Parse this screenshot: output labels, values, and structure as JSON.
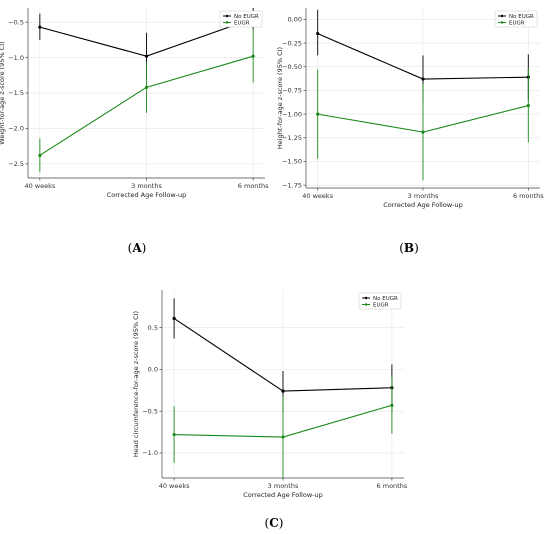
{
  "chart_data": [
    {
      "type": "line",
      "panel": "(A)",
      "panel_letter": "A",
      "categories": [
        "40 weeks",
        "3 months",
        "6 months"
      ],
      "xlabel": "Corrected Age Follow-up",
      "ylabel": "Weight-for-age z-score (95% CI)",
      "ylim": [
        -2.7,
        -0.3
      ],
      "yticks": [
        -2.5,
        -2.0,
        -1.5,
        -1.0,
        -0.5
      ],
      "ytick_labels": [
        "−2.5",
        "−2.0",
        "−1.5",
        "−1.0",
        "−0.5"
      ],
      "grid": true,
      "legend": "top-right",
      "series": [
        {
          "name": "No EUGR",
          "color": "#000000",
          "values": [
            -0.57,
            -0.98,
            -0.45
          ],
          "ci_low": [
            -0.75,
            -1.3,
            -0.6
          ],
          "ci_high": [
            -0.38,
            -0.65,
            -0.3
          ]
        },
        {
          "name": "EUGR",
          "color": "#1a8a1a",
          "values": [
            -2.38,
            -1.42,
            -0.98
          ],
          "ci_low": [
            -2.62,
            -1.78,
            -1.35
          ],
          "ci_high": [
            -2.14,
            -1.06,
            -0.6
          ]
        }
      ]
    },
    {
      "type": "line",
      "panel": "(B)",
      "panel_letter": "B",
      "categories": [
        "40 weeks",
        "3 months",
        "6 months"
      ],
      "xlabel": "Corrected Age Follow-up",
      "ylabel": "Height-for-age z-score (95% CI)",
      "ylim": [
        -1.78,
        0.12
      ],
      "yticks": [
        -1.75,
        -1.5,
        -1.25,
        -1.0,
        -0.75,
        -0.5,
        -0.25,
        0.0
      ],
      "ytick_labels": [
        "−1.75",
        "−1.50",
        "−1.25",
        "−1.00",
        "−0.75",
        "−0.50",
        "−0.25",
        "0.00"
      ],
      "grid": true,
      "legend": "top-right",
      "series": [
        {
          "name": "No EUGR",
          "color": "#000000",
          "values": [
            -0.15,
            -0.63,
            -0.61
          ],
          "ci_low": [
            -0.38,
            -0.88,
            -0.85
          ],
          "ci_high": [
            0.1,
            -0.38,
            -0.37
          ]
        },
        {
          "name": "EUGR",
          "color": "#1a8a1a",
          "values": [
            -1.0,
            -1.19,
            -0.91
          ],
          "ci_low": [
            -1.47,
            -1.7,
            -1.3
          ],
          "ci_high": [
            -0.53,
            -0.68,
            -0.52
          ]
        }
      ]
    },
    {
      "type": "line",
      "panel": "(C)",
      "panel_letter": "C",
      "categories": [
        "40 weeks",
        "3 months",
        "6 months"
      ],
      "xlabel": "Corrected Age Follow-up",
      "ylabel": "Head circumference-for-age z-score (95% CI)",
      "ylim": [
        -1.3,
        0.95
      ],
      "yticks": [
        -1.0,
        -0.5,
        0.0,
        0.5
      ],
      "ytick_labels": [
        "−1.0",
        "−0.5",
        "0.0",
        "0.5"
      ],
      "grid": true,
      "legend": "top-right",
      "series": [
        {
          "name": "No EUGR",
          "color": "#000000",
          "values": [
            0.61,
            -0.26,
            -0.22
          ],
          "ci_low": [
            0.37,
            -0.52,
            -0.5
          ],
          "ci_high": [
            0.85,
            -0.02,
            0.06
          ]
        },
        {
          "name": "EUGR",
          "color": "#1a8a1a",
          "values": [
            -0.78,
            -0.81,
            -0.43
          ],
          "ci_low": [
            -1.12,
            -1.3,
            -0.77
          ],
          "ci_high": [
            -0.44,
            -0.32,
            -0.09
          ]
        }
      ]
    }
  ]
}
